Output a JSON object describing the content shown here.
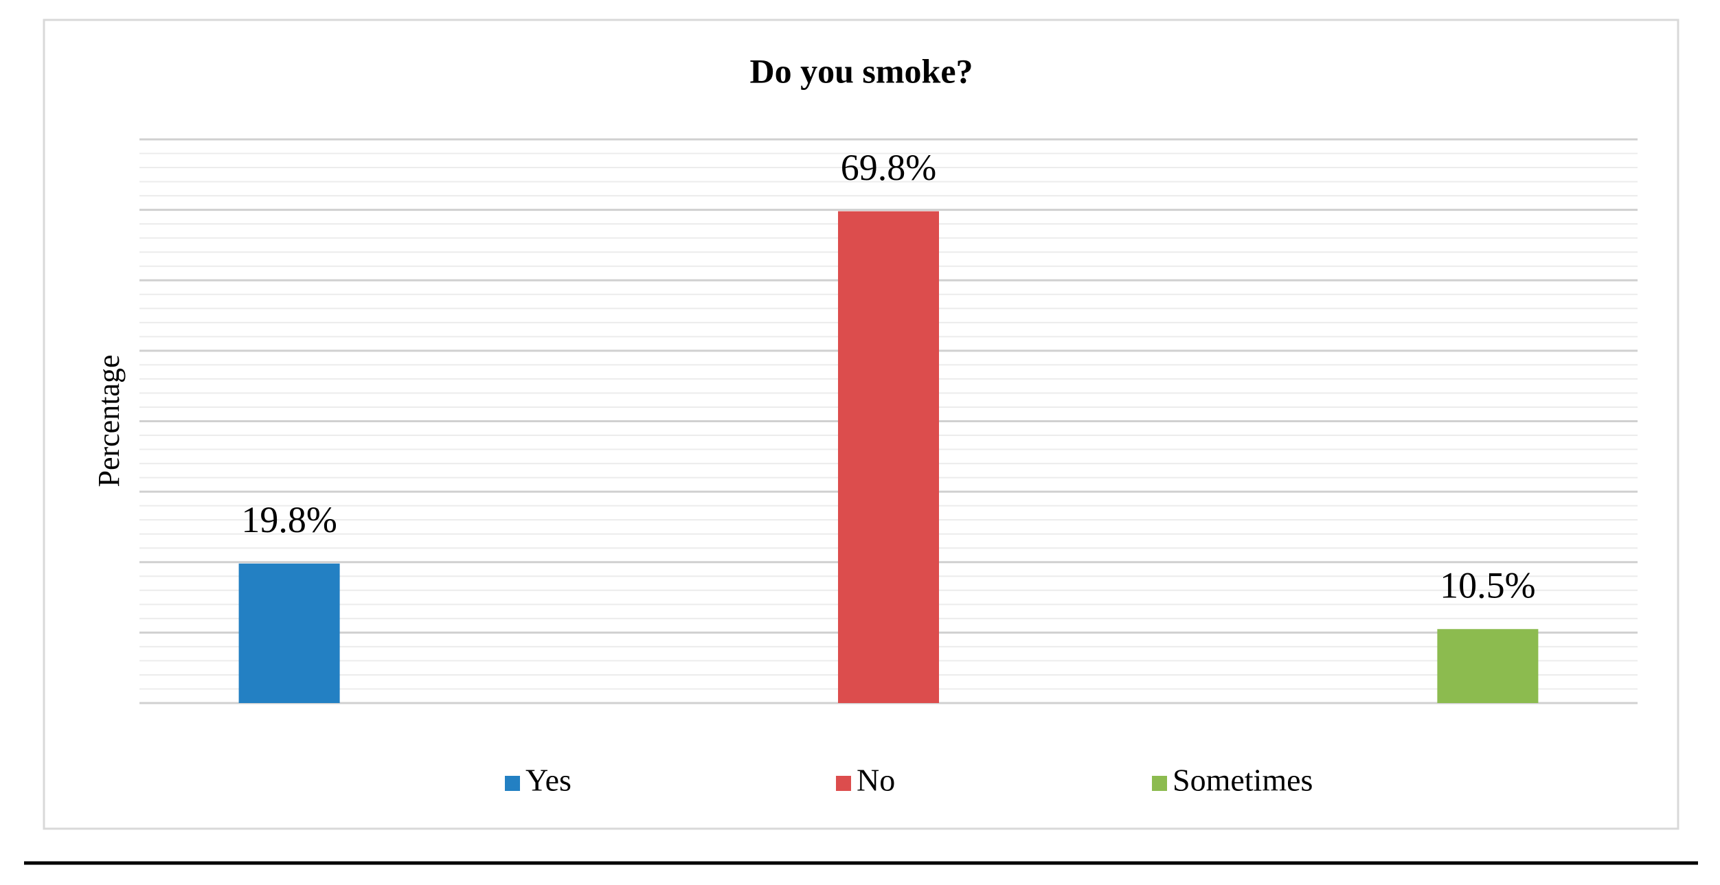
{
  "chart_data": {
    "type": "bar",
    "title": "Do you smoke?",
    "y_label": "Percentage",
    "categories": [
      "Yes",
      "No",
      "Sometimes"
    ],
    "values": [
      19.8,
      69.8,
      10.5
    ],
    "value_labels": [
      "19.8%",
      "69.8%",
      "10.5%"
    ],
    "colors": [
      "#2380c3",
      "#dc4d4d",
      "#8cbb4f"
    ],
    "ylim": [
      0,
      80
    ],
    "grid": true,
    "legend": "bottom"
  }
}
